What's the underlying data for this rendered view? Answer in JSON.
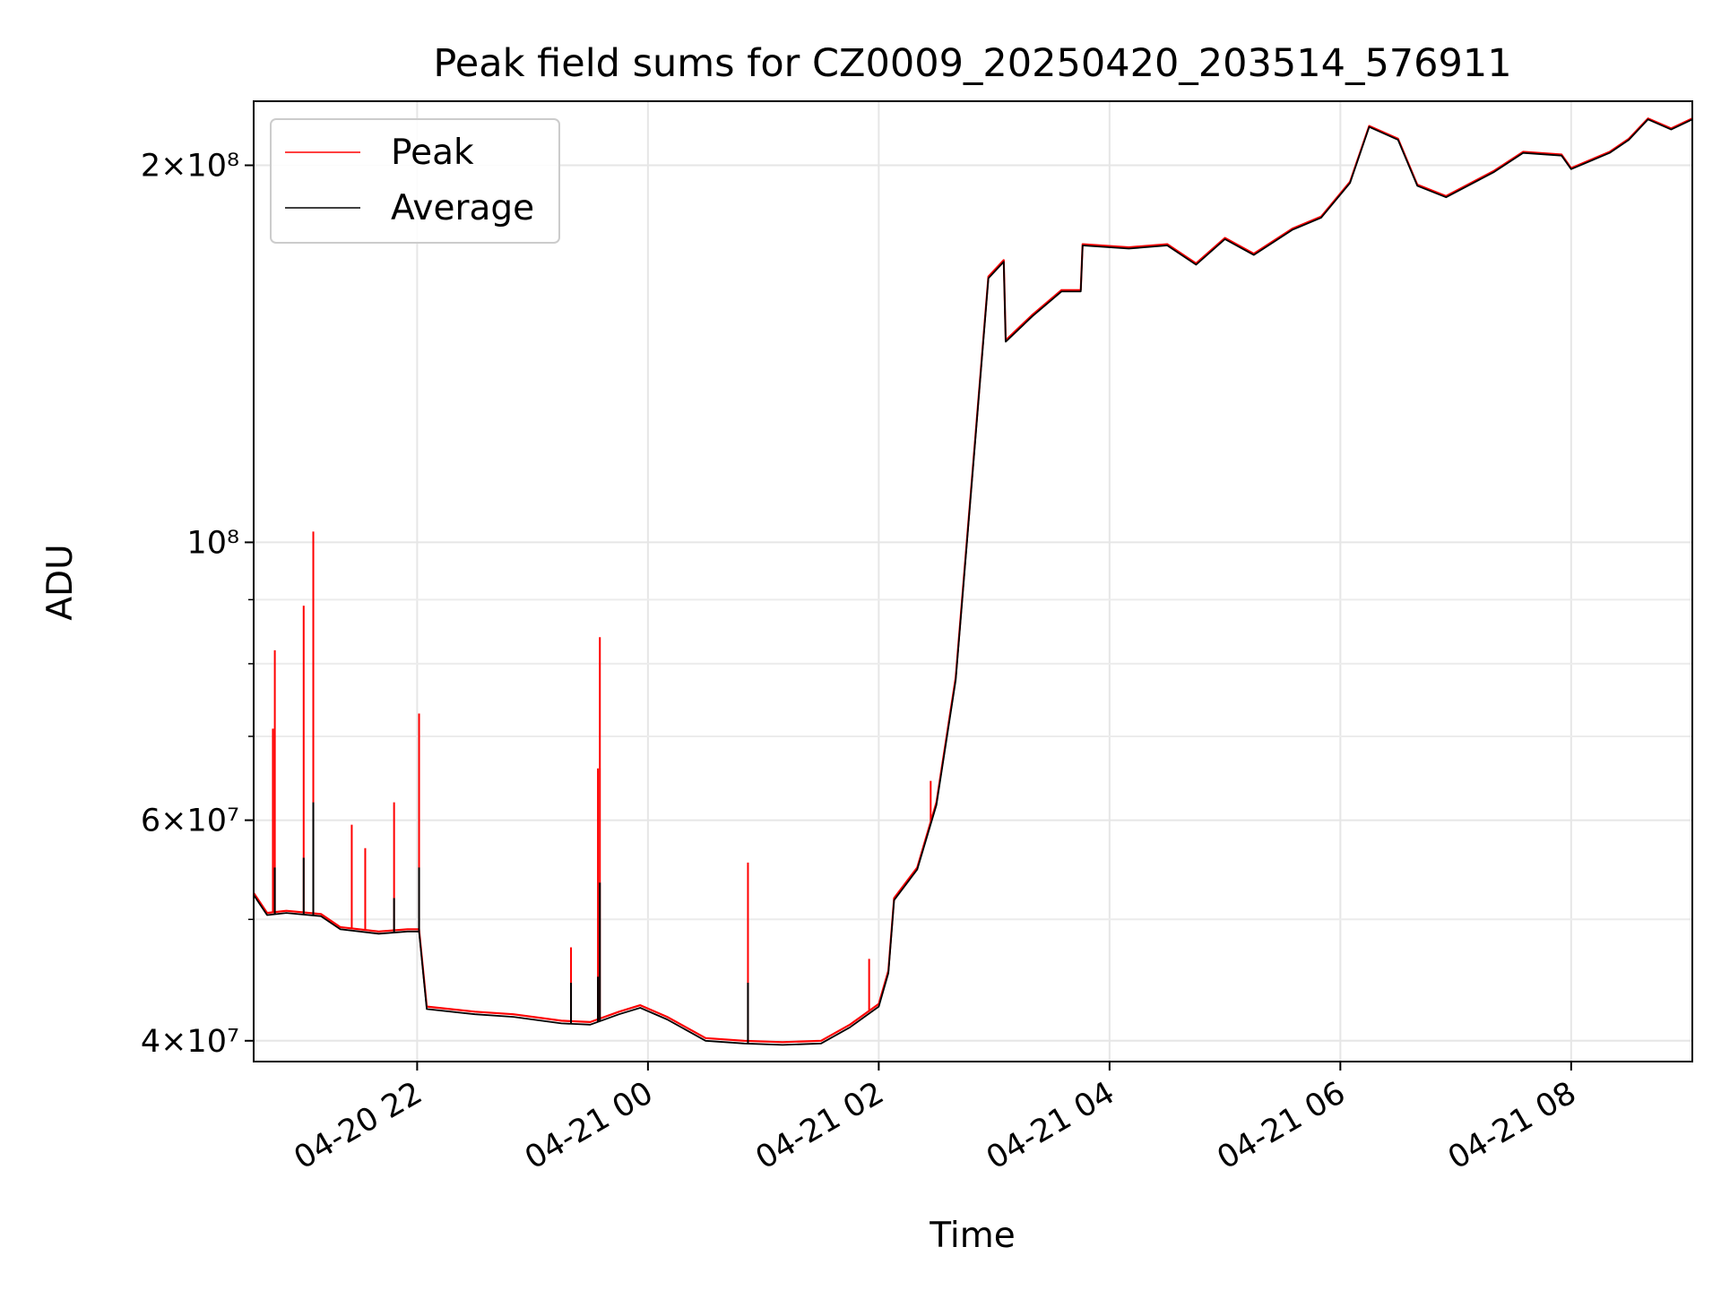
{
  "chart_data": {
    "type": "line",
    "title": "Peak field sums for CZ0009_20250420_203514_576911",
    "xlabel": "Time",
    "ylabel": "ADU",
    "y_scale": "log",
    "ylim": [
      38500000,
      225000000
    ],
    "xlim": [
      "2025-04-20 20:35",
      "2025-04-21 09:03"
    ],
    "grid": true,
    "legend_position": "upper-left",
    "x_ticks": [
      {
        "t": "2025-04-20 22:00",
        "label": "04-20 22"
      },
      {
        "t": "2025-04-21 00:00",
        "label": "04-21 00"
      },
      {
        "t": "2025-04-21 02:00",
        "label": "04-21 02"
      },
      {
        "t": "2025-04-21 04:00",
        "label": "04-21 04"
      },
      {
        "t": "2025-04-21 06:00",
        "label": "04-21 06"
      },
      {
        "t": "2025-04-21 08:00",
        "label": "04-21 08"
      }
    ],
    "y_ticks": [
      {
        "v": 40000000,
        "label": "4×10⁷"
      },
      {
        "v": 60000000,
        "label": "6×10⁷"
      },
      {
        "v": 100000000,
        "label": "10⁸"
      },
      {
        "v": 200000000,
        "label": "2×10⁸"
      }
    ],
    "y_minor_ticks": [
      50000000,
      70000000,
      80000000,
      90000000
    ],
    "series": [
      {
        "name": "Peak",
        "color": "#ff0000",
        "points": [
          [
            "2025-04-20 20:35",
            52500000
          ],
          [
            "2025-04-20 20:42",
            50600000
          ],
          [
            "2025-04-20 20:52",
            50800000
          ],
          [
            "2025-04-20 21:10",
            50500000
          ],
          [
            "2025-04-20 21:20",
            49300000
          ],
          [
            "2025-04-20 21:40",
            48900000
          ],
          [
            "2025-04-20 21:55",
            49100000
          ],
          [
            "2025-04-20 22:01",
            49100000
          ],
          [
            "2025-04-20 22:05",
            42600000
          ],
          [
            "2025-04-20 22:30",
            42200000
          ],
          [
            "2025-04-20 22:50",
            42000000
          ],
          [
            "2025-04-20 23:15",
            41500000
          ],
          [
            "2025-04-20 23:30",
            41400000
          ],
          [
            "2025-04-20 23:45",
            42200000
          ],
          [
            "2025-04-20 23:56",
            42700000
          ],
          [
            "2025-04-21 00:10",
            41800000
          ],
          [
            "2025-04-21 00:30",
            40200000
          ],
          [
            "2025-04-21 00:50",
            40000000
          ],
          [
            "2025-04-21 01:10",
            39900000
          ],
          [
            "2025-04-21 01:30",
            40000000
          ],
          [
            "2025-04-21 01:45",
            41200000
          ],
          [
            "2025-04-21 02:00",
            42800000
          ],
          [
            "2025-04-21 02:05",
            45500000
          ],
          [
            "2025-04-21 02:08",
            52000000
          ],
          [
            "2025-04-21 02:20",
            55000000
          ],
          [
            "2025-04-21 02:30",
            62000000
          ],
          [
            "2025-04-21 02:40",
            78000000
          ],
          [
            "2025-04-21 02:50",
            120000000
          ],
          [
            "2025-04-21 02:57",
            163000000
          ],
          [
            "2025-04-21 03:05",
            168000000
          ],
          [
            "2025-04-21 03:06",
            145000000
          ],
          [
            "2025-04-21 03:20",
            152000000
          ],
          [
            "2025-04-21 03:35",
            159000000
          ],
          [
            "2025-04-21 03:45",
            159000000
          ],
          [
            "2025-04-21 03:46",
            173000000
          ],
          [
            "2025-04-21 04:10",
            172000000
          ],
          [
            "2025-04-21 04:30",
            173000000
          ],
          [
            "2025-04-21 04:45",
            167000000
          ],
          [
            "2025-04-21 05:00",
            175000000
          ],
          [
            "2025-04-21 05:15",
            170000000
          ],
          [
            "2025-04-21 05:35",
            178000000
          ],
          [
            "2025-04-21 05:50",
            182000000
          ],
          [
            "2025-04-21 06:05",
            194000000
          ],
          [
            "2025-04-21 06:15",
            215000000
          ],
          [
            "2025-04-21 06:30",
            210000000
          ],
          [
            "2025-04-21 06:40",
            193000000
          ],
          [
            "2025-04-21 06:55",
            189000000
          ],
          [
            "2025-04-21 07:20",
            198000000
          ],
          [
            "2025-04-21 07:35",
            205000000
          ],
          [
            "2025-04-21 07:55",
            204000000
          ],
          [
            "2025-04-21 08:00",
            199000000
          ],
          [
            "2025-04-21 08:20",
            205000000
          ],
          [
            "2025-04-21 08:30",
            210000000
          ],
          [
            "2025-04-21 08:40",
            218000000
          ],
          [
            "2025-04-21 08:52",
            214000000
          ],
          [
            "2025-04-21 09:03",
            218000000
          ]
        ]
      },
      {
        "name": "Average",
        "color": "#000000",
        "points": [
          [
            "2025-04-20 20:35",
            52300000
          ],
          [
            "2025-04-20 20:42",
            50400000
          ],
          [
            "2025-04-20 20:52",
            50600000
          ],
          [
            "2025-04-20 21:10",
            50300000
          ],
          [
            "2025-04-20 21:20",
            49100000
          ],
          [
            "2025-04-20 21:40",
            48700000
          ],
          [
            "2025-04-20 21:55",
            48900000
          ],
          [
            "2025-04-20 22:01",
            48900000
          ],
          [
            "2025-04-20 22:05",
            42400000
          ],
          [
            "2025-04-20 22:30",
            42000000
          ],
          [
            "2025-04-20 22:50",
            41800000
          ],
          [
            "2025-04-20 23:15",
            41300000
          ],
          [
            "2025-04-20 23:30",
            41200000
          ],
          [
            "2025-04-20 23:45",
            42000000
          ],
          [
            "2025-04-20 23:56",
            42500000
          ],
          [
            "2025-04-21 00:10",
            41600000
          ],
          [
            "2025-04-21 00:30",
            40000000
          ],
          [
            "2025-04-21 00:50",
            39800000
          ],
          [
            "2025-04-21 01:10",
            39700000
          ],
          [
            "2025-04-21 01:30",
            39800000
          ],
          [
            "2025-04-21 01:45",
            41000000
          ],
          [
            "2025-04-21 02:00",
            42600000
          ],
          [
            "2025-04-21 02:05",
            45300000
          ],
          [
            "2025-04-21 02:08",
            51800000
          ],
          [
            "2025-04-21 02:20",
            54800000
          ],
          [
            "2025-04-21 02:30",
            61700000
          ],
          [
            "2025-04-21 02:40",
            77600000
          ],
          [
            "2025-04-21 02:50",
            119500000
          ],
          [
            "2025-04-21 02:57",
            162500000
          ],
          [
            "2025-04-21 03:05",
            167500000
          ],
          [
            "2025-04-21 03:06",
            144600000
          ],
          [
            "2025-04-21 03:20",
            151600000
          ],
          [
            "2025-04-21 03:35",
            158600000
          ],
          [
            "2025-04-21 03:45",
            158600000
          ],
          [
            "2025-04-21 03:46",
            172600000
          ],
          [
            "2025-04-21 04:10",
            171600000
          ],
          [
            "2025-04-21 04:30",
            172600000
          ],
          [
            "2025-04-21 04:45",
            166600000
          ],
          [
            "2025-04-21 05:00",
            174600000
          ],
          [
            "2025-04-21 05:15",
            169600000
          ],
          [
            "2025-04-21 05:35",
            177600000
          ],
          [
            "2025-04-21 05:50",
            181600000
          ],
          [
            "2025-04-21 06:05",
            193600000
          ],
          [
            "2025-04-21 06:15",
            214600000
          ],
          [
            "2025-04-21 06:30",
            209600000
          ],
          [
            "2025-04-21 06:40",
            192600000
          ],
          [
            "2025-04-21 06:55",
            188600000
          ],
          [
            "2025-04-21 07:20",
            197600000
          ],
          [
            "2025-04-21 07:35",
            204600000
          ],
          [
            "2025-04-21 07:55",
            203600000
          ],
          [
            "2025-04-21 08:00",
            198600000
          ],
          [
            "2025-04-21 08:20",
            204600000
          ],
          [
            "2025-04-21 08:30",
            209600000
          ],
          [
            "2025-04-21 08:40",
            217600000
          ],
          [
            "2025-04-21 08:52",
            213600000
          ],
          [
            "2025-04-21 09:03",
            217600000
          ]
        ]
      }
    ],
    "peak_spikes": [
      {
        "t": "2025-04-20 20:45",
        "value": 71000000
      },
      {
        "t": "2025-04-20 20:46",
        "value": 82000000
      },
      {
        "t": "2025-04-20 21:01",
        "value": 89000000
      },
      {
        "t": "2025-04-20 21:06",
        "value": 102000000
      },
      {
        "t": "2025-04-20 21:26",
        "value": 59500000
      },
      {
        "t": "2025-04-20 21:33",
        "value": 57000000
      },
      {
        "t": "2025-04-20 21:48",
        "value": 62000000
      },
      {
        "t": "2025-04-20 22:01",
        "value": 73000000
      },
      {
        "t": "2025-04-20 23:20",
        "value": 47500000
      },
      {
        "t": "2025-04-20 23:34",
        "value": 66000000
      },
      {
        "t": "2025-04-20 23:35",
        "value": 84000000
      },
      {
        "t": "2025-04-21 00:52",
        "value": 55500000
      },
      {
        "t": "2025-04-21 01:55",
        "value": 46500000
      },
      {
        "t": "2025-04-21 02:27",
        "value": 64500000
      }
    ],
    "average_spikes": [
      {
        "t": "2025-04-20 20:46",
        "value": 55000000
      },
      {
        "t": "2025-04-20 21:01",
        "value": 56000000
      },
      {
        "t": "2025-04-20 21:06",
        "value": 62000000
      },
      {
        "t": "2025-04-20 21:48",
        "value": 52000000
      },
      {
        "t": "2025-04-20 22:01",
        "value": 55000000
      },
      {
        "t": "2025-04-20 23:20",
        "value": 44500000
      },
      {
        "t": "2025-04-20 23:34",
        "value": 45000000
      },
      {
        "t": "2025-04-20 23:35",
        "value": 53500000
      },
      {
        "t": "2025-04-21 00:52",
        "value": 44500000
      }
    ]
  }
}
